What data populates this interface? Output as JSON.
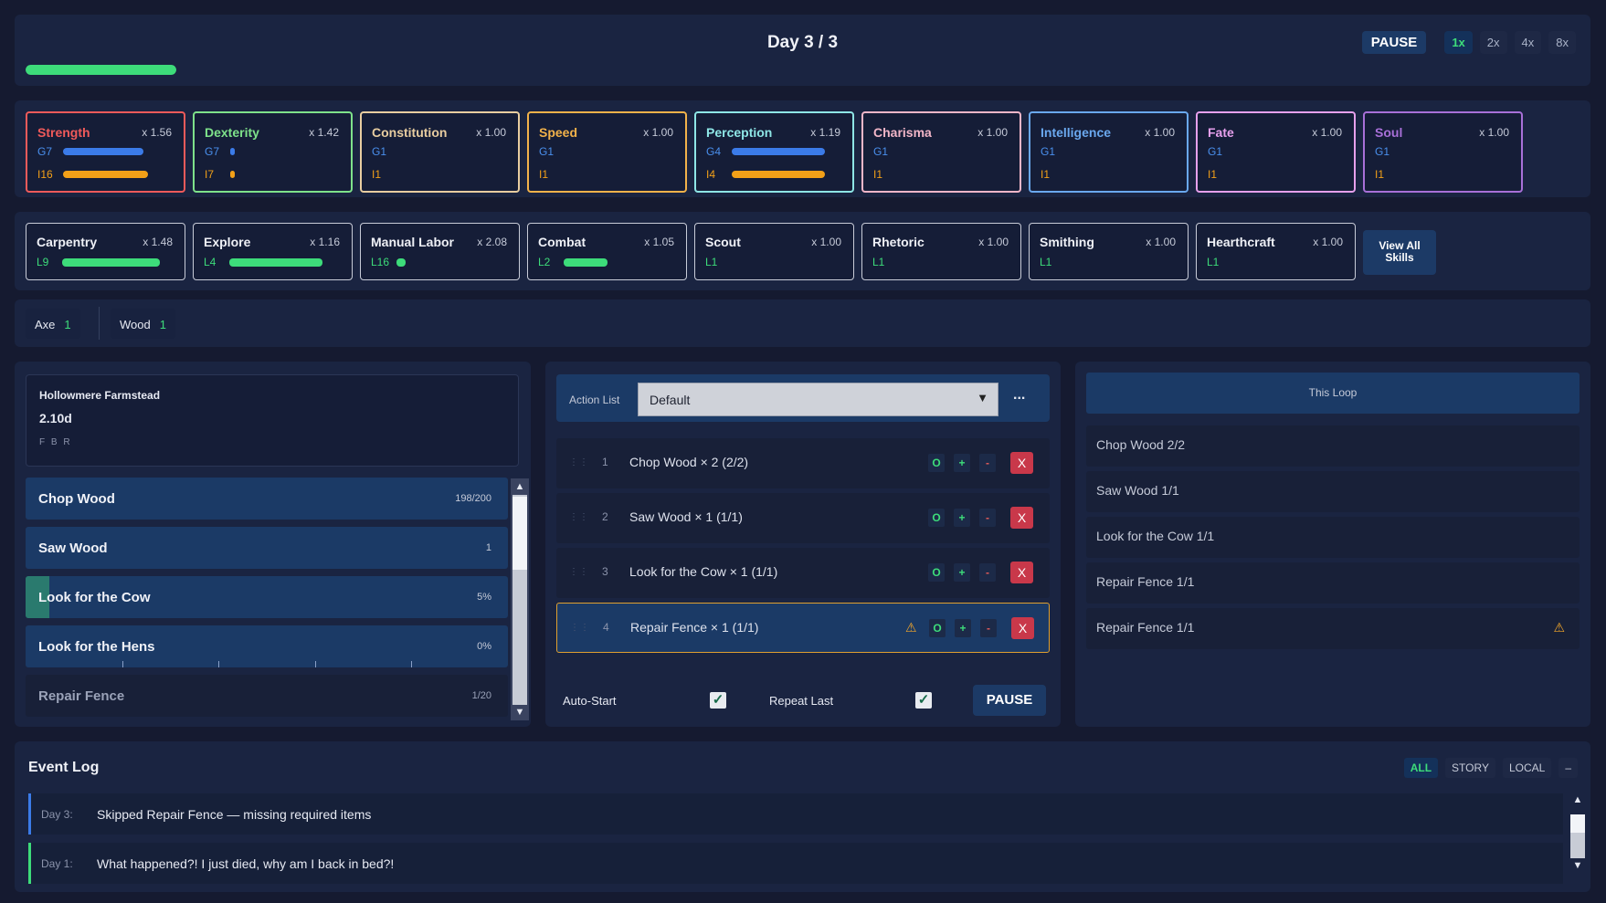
{
  "header": {
    "day_title": "Day 3 / 3",
    "day_progress": 1.0,
    "pause_label": "PAUSE",
    "speeds": [
      "1x",
      "2x",
      "4x",
      "8x"
    ],
    "active_speed": "1x"
  },
  "stats": [
    {
      "name": "Strength",
      "mult": "x 1.56",
      "color": "#f05a5a",
      "g": "G7",
      "g_fill": 0.55,
      "i": "I16",
      "i_fill": 0.58
    },
    {
      "name": "Dexterity",
      "mult": "x 1.42",
      "color": "#7ee28a",
      "g": "G7",
      "g_fill": 0.03,
      "i": "I7",
      "i_fill": 0.03
    },
    {
      "name": "Constitution",
      "mult": "x 1.00",
      "color": "#e8cda0",
      "g": "G1",
      "g_fill": 0,
      "i": "I1",
      "i_fill": 0
    },
    {
      "name": "Speed",
      "mult": "x 1.00",
      "color": "#f2b24a",
      "g": "G1",
      "g_fill": 0,
      "i": "I1",
      "i_fill": 0
    },
    {
      "name": "Perception",
      "mult": "x 1.19",
      "color": "#8ee6e6",
      "g": "G4",
      "g_fill": 0.64,
      "i": "I4",
      "i_fill": 0.64
    },
    {
      "name": "Charisma",
      "mult": "x 1.00",
      "color": "#f2b6c8",
      "g": "G1",
      "g_fill": 0,
      "i": "I1",
      "i_fill": 0
    },
    {
      "name": "Intelligence",
      "mult": "x 1.00",
      "color": "#6aa8ee",
      "g": "G1",
      "g_fill": 0,
      "i": "I1",
      "i_fill": 0
    },
    {
      "name": "Fate",
      "mult": "x 1.00",
      "color": "#e6a0ec",
      "g": "G1",
      "g_fill": 0,
      "i": "I1",
      "i_fill": 0
    },
    {
      "name": "Soul",
      "mult": "x 1.00",
      "color": "#a870d8",
      "g": "G1",
      "g_fill": 0,
      "i": "I1",
      "i_fill": 0
    }
  ],
  "skills": [
    {
      "name": "Carpentry",
      "mult": "x 1.48",
      "level": "L9",
      "fill": 0.67
    },
    {
      "name": "Explore",
      "mult": "x 1.16",
      "level": "L4",
      "fill": 0.64
    },
    {
      "name": "Manual Labor",
      "mult": "x 2.08",
      "level": "L16",
      "fill": 0.06
    },
    {
      "name": "Combat",
      "mult": "x 1.05",
      "level": "L2",
      "fill": 0.3
    },
    {
      "name": "Scout",
      "mult": "x 1.00",
      "level": "L1",
      "fill": 0
    },
    {
      "name": "Rhetoric",
      "mult": "x 1.00",
      "level": "L1",
      "fill": 0
    },
    {
      "name": "Smithing",
      "mult": "x 1.00",
      "level": "L1",
      "fill": 0
    },
    {
      "name": "Hearthcraft",
      "mult": "x 1.00",
      "level": "L1",
      "fill": 0
    }
  ],
  "view_all_label": "View All Skills",
  "inventory": [
    {
      "name": "Axe",
      "count": "1"
    },
    {
      "name": "Wood",
      "count": "1"
    }
  ],
  "location": {
    "name": "Hollowmere Farmstead",
    "value": "2.10d",
    "flags": "F B R"
  },
  "actions": [
    {
      "name": "Chop Wood",
      "value": "198/200",
      "fill": 0,
      "dim": false
    },
    {
      "name": "Saw Wood",
      "value": "1",
      "fill": 0,
      "dim": false
    },
    {
      "name": "Look for the Cow",
      "value": "5%",
      "fill": 0.05,
      "dim": false
    },
    {
      "name": "Look for the Hens",
      "value": "0%",
      "fill": 0,
      "dim": false,
      "ticks": true
    },
    {
      "name": "Repair Fence",
      "value": "1/20",
      "fill": 0,
      "dim": true
    }
  ],
  "action_list": {
    "label": "Action List",
    "selected": "Default",
    "more": "..."
  },
  "queue": [
    {
      "num": "1",
      "text": "Chop Wood × 2 (2/2)",
      "warn": false,
      "selected": false
    },
    {
      "num": "2",
      "text": "Saw Wood × 1 (1/1)",
      "warn": false,
      "selected": false
    },
    {
      "num": "3",
      "text": "Look for the Cow × 1 (1/1)",
      "warn": false,
      "selected": false
    },
    {
      "num": "4",
      "text": "Repair Fence × 1 (1/1)",
      "warn": true,
      "selected": true
    }
  ],
  "queue_buttons": {
    "o": "O",
    "plus": "+",
    "minus": "-",
    "x": "X",
    "grip": "⋮⋮",
    "warn": "⚠"
  },
  "controls": {
    "auto_start": "Auto-Start",
    "repeat_last": "Repeat Last",
    "auto_start_checked": true,
    "repeat_last_checked": true,
    "pause": "PAUSE"
  },
  "loop": {
    "title": "This Loop",
    "items": [
      {
        "text": "Chop Wood 2/2",
        "warn": false
      },
      {
        "text": "Saw Wood 1/1",
        "warn": false
      },
      {
        "text": "Look for the Cow 1/1",
        "warn": false
      },
      {
        "text": "Repair Fence 1/1",
        "warn": false
      },
      {
        "text": "Repair Fence 1/1",
        "warn": true
      }
    ]
  },
  "event_log": {
    "title": "Event Log",
    "filters": [
      "ALL",
      "STORY",
      "LOCAL",
      "–"
    ],
    "active_filter": "ALL",
    "entries": [
      {
        "day": "Day 3:",
        "text": "Skipped Repair Fence — missing required items",
        "color": "#3b7be8"
      },
      {
        "day": "Day 1:",
        "text": "What happened?! I just died, why am I back in bed?!",
        "color": "#3ddc7a"
      }
    ]
  },
  "colors": {
    "g_bar": "#3b7be8",
    "i_bar": "#f2a018",
    "g_text": "#4a90ee",
    "i_text": "#f2a018",
    "skill_bar": "#3ddc7a"
  }
}
